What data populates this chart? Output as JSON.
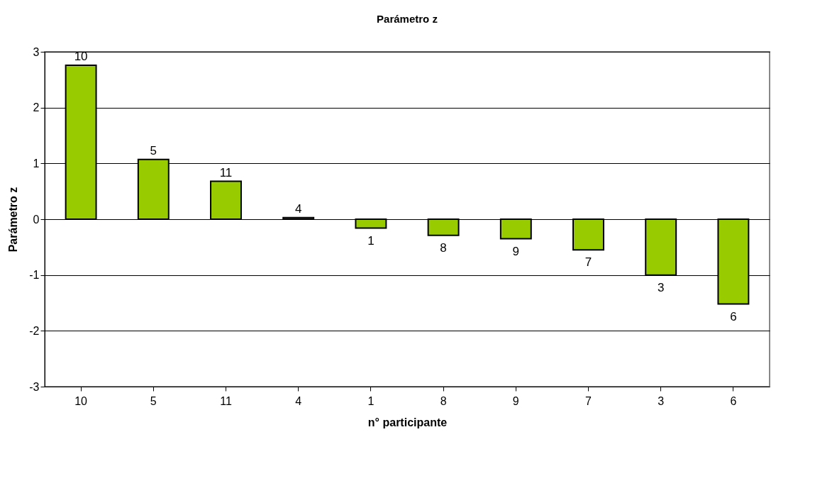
{
  "chart_data": {
    "type": "bar",
    "title": "Parámetro z",
    "xlabel": "n° participante",
    "ylabel": "Parámetro z",
    "categories": [
      "10",
      "5",
      "11",
      "4",
      "1",
      "8",
      "9",
      "7",
      "3",
      "6"
    ],
    "values": [
      2.76,
      1.07,
      0.68,
      0.03,
      -0.16,
      -0.29,
      -0.35,
      -0.55,
      -1.0,
      -1.52
    ],
    "annotations": [
      {
        "text": "10",
        "x": "10",
        "y": 2.76
      },
      {
        "text": "5",
        "x": "5",
        "y": 1.07
      },
      {
        "text": "11",
        "x": "11",
        "y": 0.68
      },
      {
        "text": "4",
        "x": "4",
        "y": 0.03
      },
      {
        "text": "1",
        "x": "1",
        "y": -0.16
      },
      {
        "text": "8",
        "x": "8",
        "y": -0.29
      },
      {
        "text": "9",
        "x": "9",
        "y": -0.35
      },
      {
        "text": "7",
        "x": "7",
        "y": -0.55
      },
      {
        "text": "3",
        "x": "3",
        "y": -1.0
      },
      {
        "text": "6",
        "x": "6",
        "y": -1.52
      }
    ],
    "color": "#99cc00",
    "ylim": [
      -3,
      3
    ],
    "yticks": [
      -3,
      -2,
      -1,
      0,
      1,
      2,
      3
    ],
    "grid": "y"
  }
}
